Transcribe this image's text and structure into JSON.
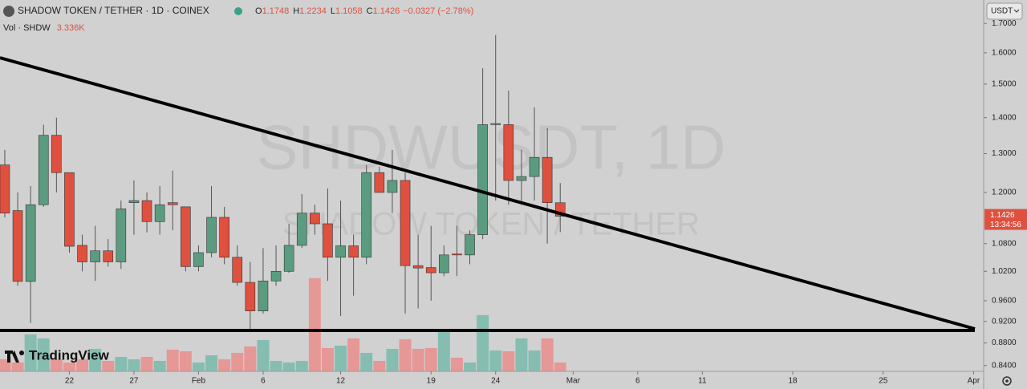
{
  "chart_data": {
    "type": "candlestick",
    "title": "SHADOW TOKEN / TETHER · 1D · COINEX",
    "watermark": "SHDWUSDT, 1D",
    "watermark_sub": "SHADOW TOKEN / TETHER",
    "ohlc_labels": [
      "O",
      "H",
      "L",
      "C"
    ],
    "change": "−0.0327 (−2.78%)",
    "currency": "USDT",
    "countdown": "13:34:56",
    "brand": "TradingView",
    "log_scale": true,
    "up_color": "#5b9c80",
    "down_color": "#e0503e",
    "volume_up_color": "#85bdb1",
    "volume_down_color": "#e59896",
    "candles": {
      "open": [
        1.27,
        1.156,
        0.999,
        1.17,
        1.35,
        1.25,
        1.076,
        1.04,
        1.064,
        1.04,
        1.175,
        1.18,
        1.13,
        1.175,
        1.165,
        1.03,
        1.06,
        1.14,
        1.05,
        0.997,
        0.94,
        1.0,
        1.02,
        1.076,
        1.15,
        1.125,
        1.05,
        1.075,
        1.05,
        1.25,
        1.2,
        1.23,
        1.032,
        1.028,
        1.017,
        1.057,
        1.055,
        1.1,
        1.38,
        1.38,
        1.23,
        1.24,
        1.29,
        1.1748
      ],
      "high": [
        1.31,
        1.2,
        1.216,
        1.38,
        1.4,
        1.25,
        1.1,
        1.12,
        1.09,
        1.18,
        1.23,
        1.2,
        1.216,
        1.255,
        1.165,
        1.076,
        1.216,
        1.165,
        1.076,
        1.04,
        1.07,
        1.076,
        1.125,
        1.196,
        1.17,
        1.21,
        1.18,
        1.1,
        1.27,
        1.265,
        1.31,
        1.25,
        1.1,
        1.12,
        1.076,
        1.12,
        1.11,
        1.55,
        1.66,
        1.48,
        1.31,
        1.43,
        1.37,
        1.2234
      ],
      "low": [
        1.14,
        0.99,
        0.917,
        1.165,
        1.2,
        1.06,
        1.02,
        1.0,
        1.03,
        1.025,
        1.1,
        1.105,
        1.1,
        1.11,
        1.02,
        1.02,
        1.05,
        1.035,
        0.99,
        0.905,
        0.935,
        0.99,
        1.017,
        1.07,
        1.1,
        1.0,
        0.93,
        0.97,
        1.035,
        1.2,
        1.15,
        0.935,
        0.945,
        0.96,
        1.01,
        1.01,
        1.035,
        1.09,
        1.18,
        1.17,
        1.17,
        1.18,
        1.08,
        1.1058
      ],
      "close": [
        1.15,
        0.999,
        1.17,
        1.35,
        1.25,
        1.074,
        1.04,
        1.064,
        1.04,
        1.16,
        1.18,
        1.13,
        1.17,
        1.17,
        1.03,
        1.06,
        1.14,
        1.05,
        0.997,
        0.94,
        1.0,
        1.02,
        1.076,
        1.15,
        1.125,
        1.05,
        1.075,
        1.05,
        1.25,
        1.2,
        1.23,
        1.032,
        1.027,
        1.017,
        1.055,
        1.055,
        1.1,
        1.38,
        1.383,
        1.23,
        1.24,
        1.29,
        1.175,
        1.1426
      ]
    },
    "volume": {
      "label": "Vol · SHDW",
      "last_label": "3.336K",
      "values": [
        4545,
        3333,
        13938,
        12423,
        4545,
        3333,
        4545,
        8484,
        3939,
        5454,
        4545,
        5454,
        3939,
        8181,
        7575,
        3333,
        6060,
        4545,
        6969,
        9393,
        11817,
        3939,
        3333,
        3939,
        35148,
        8787,
        9696,
        12423,
        6969,
        3939,
        8484,
        12120,
        8484,
        8787,
        15453,
        5151,
        3333,
        21210,
        7878,
        7575,
        12423,
        7878,
        12423,
        3336
      ],
      "vlim": [
        0,
        140000
      ]
    },
    "xlim": [
      -0.37,
      75.72
    ],
    "xticks": [
      {
        "value": 5,
        "label": "22"
      },
      {
        "value": 10,
        "label": "27"
      },
      {
        "value": 15,
        "label": "Feb"
      },
      {
        "value": 20,
        "label": "6"
      },
      {
        "value": 26,
        "label": "12"
      },
      {
        "value": 33,
        "label": "19"
      },
      {
        "value": 38,
        "label": "24"
      },
      {
        "value": 44,
        "label": "Mar"
      },
      {
        "value": 49,
        "label": "6"
      },
      {
        "value": 54,
        "label": "11"
      },
      {
        "value": 61,
        "label": "18"
      },
      {
        "value": 68,
        "label": "25"
      },
      {
        "value": 75,
        "label": "Apr"
      }
    ],
    "ylim": [
      0.83,
      1.784
    ],
    "yticks": [
      {
        "value": 0.84,
        "label": "0.8400"
      },
      {
        "value": 0.88,
        "label": "0.8800"
      },
      {
        "value": 0.92,
        "label": "0.9200"
      },
      {
        "value": 0.96,
        "label": "0.9600"
      },
      {
        "value": 1.02,
        "label": "1.0200"
      },
      {
        "value": 1.08,
        "label": "1.0800"
      },
      {
        "value": 1.2,
        "label": "1.2000"
      },
      {
        "value": 1.3,
        "label": "1.3000"
      },
      {
        "value": 1.4,
        "label": "1.4000"
      },
      {
        "value": 1.5,
        "label": "1.5000"
      },
      {
        "value": 1.6,
        "label": "1.6000"
      },
      {
        "value": 1.7,
        "label": "1.7000"
      }
    ]
  }
}
